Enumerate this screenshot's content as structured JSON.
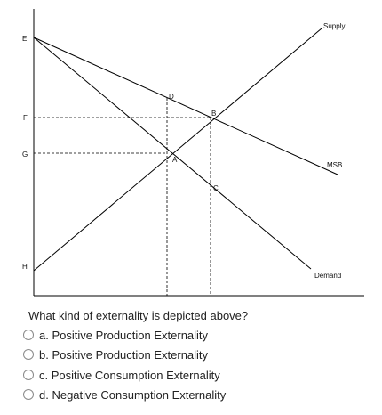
{
  "graph": {
    "axis_labels": {
      "E": "E",
      "F": "F",
      "G": "G",
      "H": "H"
    },
    "point_labels": {
      "A": "A",
      "B": "B",
      "C": "C",
      "D": "D"
    },
    "curve_labels": {
      "supply": "Supply",
      "msb": "MSB",
      "demand": "Demand"
    }
  },
  "question": {
    "prompt": "What kind of externality is depicted above?",
    "options": [
      {
        "label": "a. Positive Production Externality"
      },
      {
        "label": "b. Positive Production Externality"
      },
      {
        "label": "c. Positive Consumption Externality"
      },
      {
        "label": "d. Negative Consumption Externality"
      }
    ]
  }
}
